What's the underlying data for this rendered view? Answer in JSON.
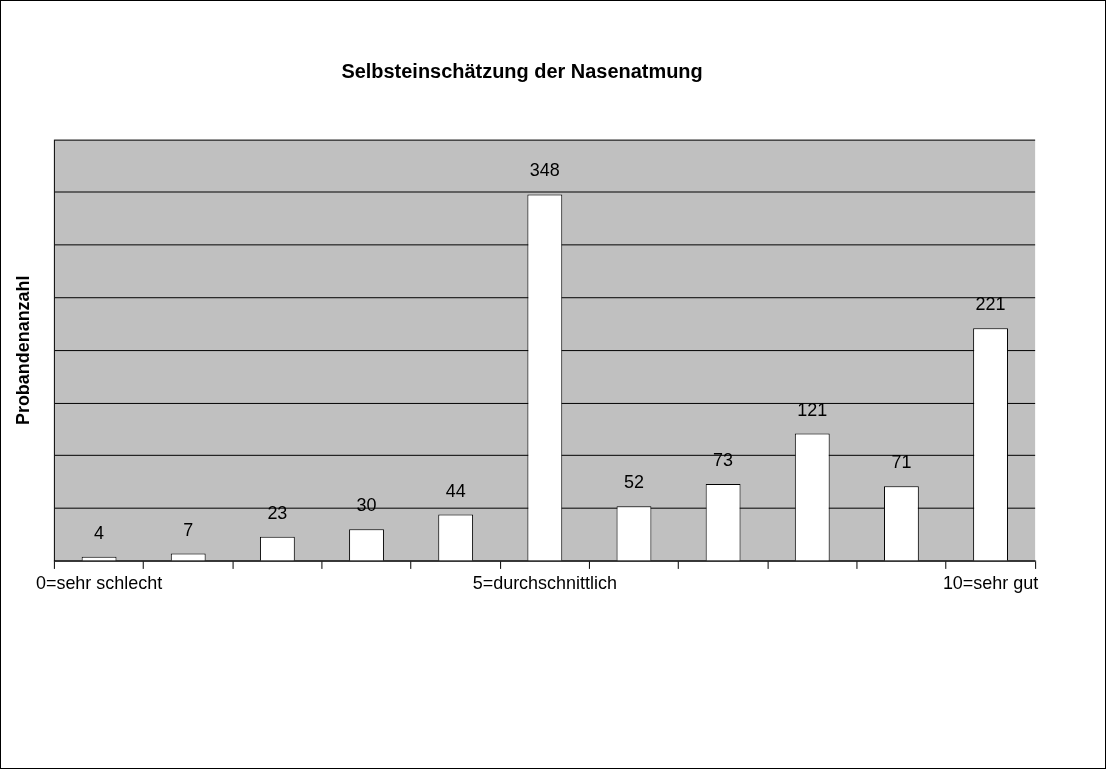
{
  "chart_data": {
    "type": "bar",
    "title": "Selbsteinschätzung der Nasenatmung",
    "ylabel": "Probandenanzahl",
    "categories": [
      "0=sehr schlecht",
      null,
      null,
      null,
      null,
      "5=durchschnittlich",
      null,
      null,
      null,
      null,
      "10=sehr gut"
    ],
    "values": [
      4,
      7,
      23,
      30,
      44,
      348,
      52,
      73,
      121,
      71,
      221
    ],
    "color": "#ffffff",
    "ylim": [
      0,
      400
    ],
    "yticks": [
      {
        "value": 0,
        "label": null
      },
      {
        "value": 50,
        "label": null
      },
      {
        "value": 100,
        "label": null
      },
      {
        "value": 150,
        "label": null
      },
      {
        "value": 200,
        "label": null
      },
      {
        "value": 250,
        "label": null
      },
      {
        "value": 300,
        "label": null
      },
      {
        "value": 350,
        "label": null
      },
      {
        "value": 400,
        "label": null
      }
    ],
    "grid": "y",
    "tick_labels": "x",
    "data_labels": true,
    "legend": false
  }
}
